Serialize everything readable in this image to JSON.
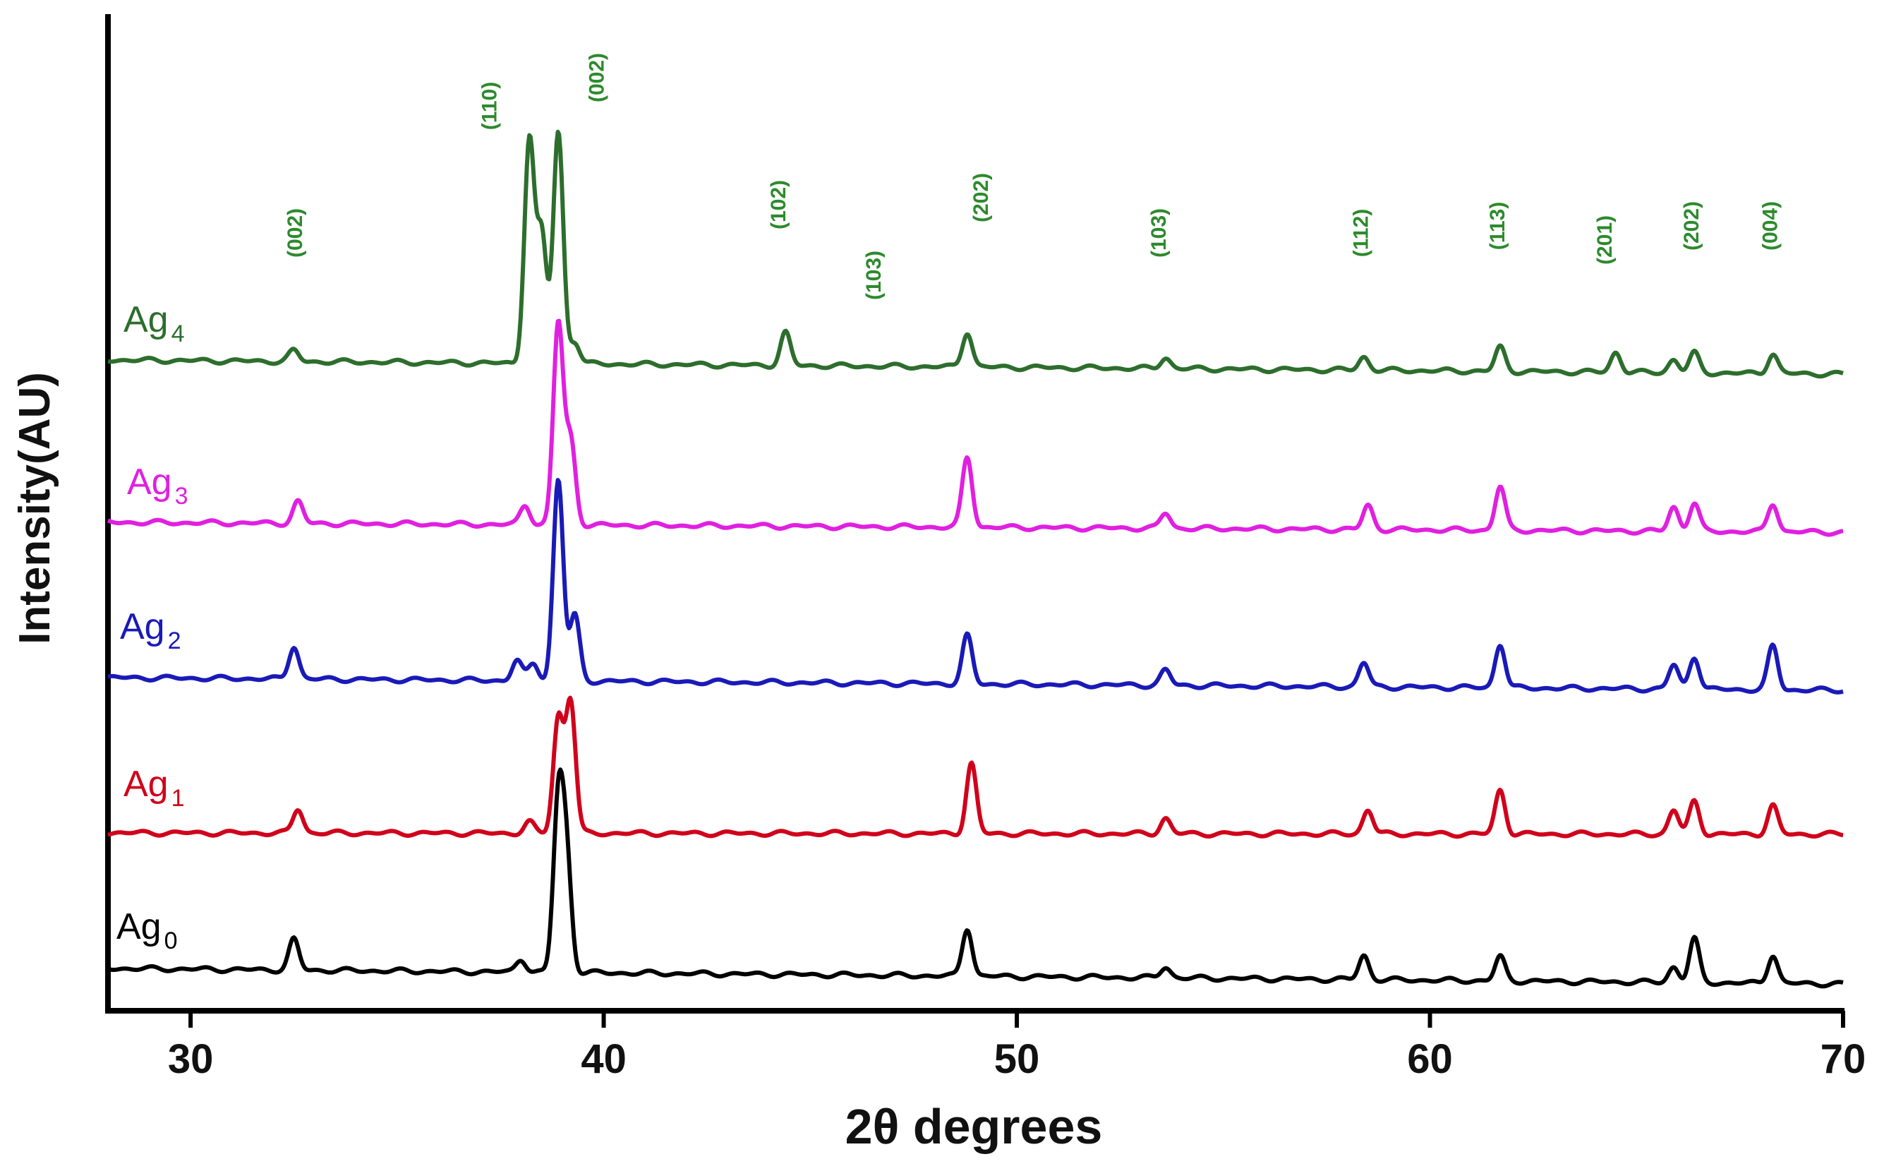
{
  "chart_data": {
    "type": "line",
    "title": "",
    "xlabel": "2θ degrees",
    "ylabel": "Intensity(AU)",
    "xlim": [
      28,
      70
    ],
    "xticks": [
      30,
      40,
      50,
      60,
      70
    ],
    "grid": false,
    "series": [
      {
        "name": "Ag",
        "subscript": "0",
        "color": "#000000",
        "peaks": [
          [
            32.5,
            0.7
          ],
          [
            38.0,
            0.3
          ],
          [
            38.9,
            3.8
          ],
          [
            39.1,
            2.5
          ],
          [
            48.8,
            1.1
          ],
          [
            53.6,
            0.25
          ],
          [
            58.4,
            0.55
          ],
          [
            61.7,
            0.55
          ],
          [
            65.9,
            0.35
          ],
          [
            66.4,
            1.0
          ],
          [
            68.3,
            0.65
          ]
        ]
      },
      {
        "name": "Ag",
        "subscript": "1",
        "color": "#d0021b",
        "peaks": [
          [
            32.6,
            0.55
          ],
          [
            38.2,
            0.25
          ],
          [
            38.9,
            2.6
          ],
          [
            39.2,
            3.0
          ],
          [
            48.9,
            1.6
          ],
          [
            53.6,
            0.35
          ],
          [
            58.5,
            0.55
          ],
          [
            61.7,
            1.0
          ],
          [
            65.9,
            0.55
          ],
          [
            66.4,
            0.75
          ],
          [
            68.3,
            0.65
          ]
        ]
      },
      {
        "name": "Ag",
        "subscript": "2",
        "color": "#1a1ab8",
        "peaks": [
          [
            32.5,
            0.75
          ],
          [
            37.9,
            0.45
          ],
          [
            38.3,
            0.4
          ],
          [
            38.9,
            4.6
          ],
          [
            39.3,
            1.5
          ],
          [
            48.8,
            1.1
          ],
          [
            53.6,
            0.35
          ],
          [
            58.4,
            0.55
          ],
          [
            61.7,
            1.0
          ],
          [
            65.9,
            0.55
          ],
          [
            66.4,
            0.75
          ],
          [
            68.3,
            1.0
          ]
        ]
      },
      {
        "name": "Ag",
        "subscript": "3",
        "color": "#e020e0",
        "peaks": [
          [
            32.6,
            0.5
          ],
          [
            38.1,
            0.45
          ],
          [
            38.9,
            4.6
          ],
          [
            39.2,
            1.9
          ],
          [
            48.8,
            1.6
          ],
          [
            53.6,
            0.35
          ],
          [
            58.5,
            0.55
          ],
          [
            61.7,
            1.0
          ],
          [
            65.9,
            0.55
          ],
          [
            66.4,
            0.65
          ],
          [
            68.3,
            0.65
          ]
        ]
      },
      {
        "name": "Ag",
        "subscript": "4",
        "color": "#2d6e2d",
        "peaks": [
          [
            32.5,
            0.25
          ],
          [
            38.2,
            5.1
          ],
          [
            38.5,
            2.9
          ],
          [
            38.9,
            5.3
          ],
          [
            39.3,
            0.5
          ],
          [
            44.4,
            0.75
          ],
          [
            48.8,
            0.8
          ],
          [
            53.6,
            0.25
          ],
          [
            58.4,
            0.3
          ],
          [
            61.7,
            0.55
          ],
          [
            64.5,
            0.45
          ],
          [
            65.9,
            0.3
          ],
          [
            66.4,
            0.45
          ],
          [
            68.3,
            0.45
          ]
        ]
      }
    ],
    "peak_labels": [
      {
        "x": 32.7,
        "text": "(002)"
      },
      {
        "x": 37.4,
        "text": "(110)"
      },
      {
        "x": 40.0,
        "text": "(002)"
      },
      {
        "x": 44.4,
        "text": "(102)"
      },
      {
        "x": 46.7,
        "text": "(103)"
      },
      {
        "x": 49.3,
        "text": "(202)"
      },
      {
        "x": 53.6,
        "text": "(103)"
      },
      {
        "x": 58.5,
        "text": "(112)"
      },
      {
        "x": 61.8,
        "text": "(113)"
      },
      {
        "x": 64.4,
        "text": "(201)"
      },
      {
        "x": 66.5,
        "text": "(202)"
      },
      {
        "x": 68.4,
        "text": "(004)"
      }
    ]
  }
}
